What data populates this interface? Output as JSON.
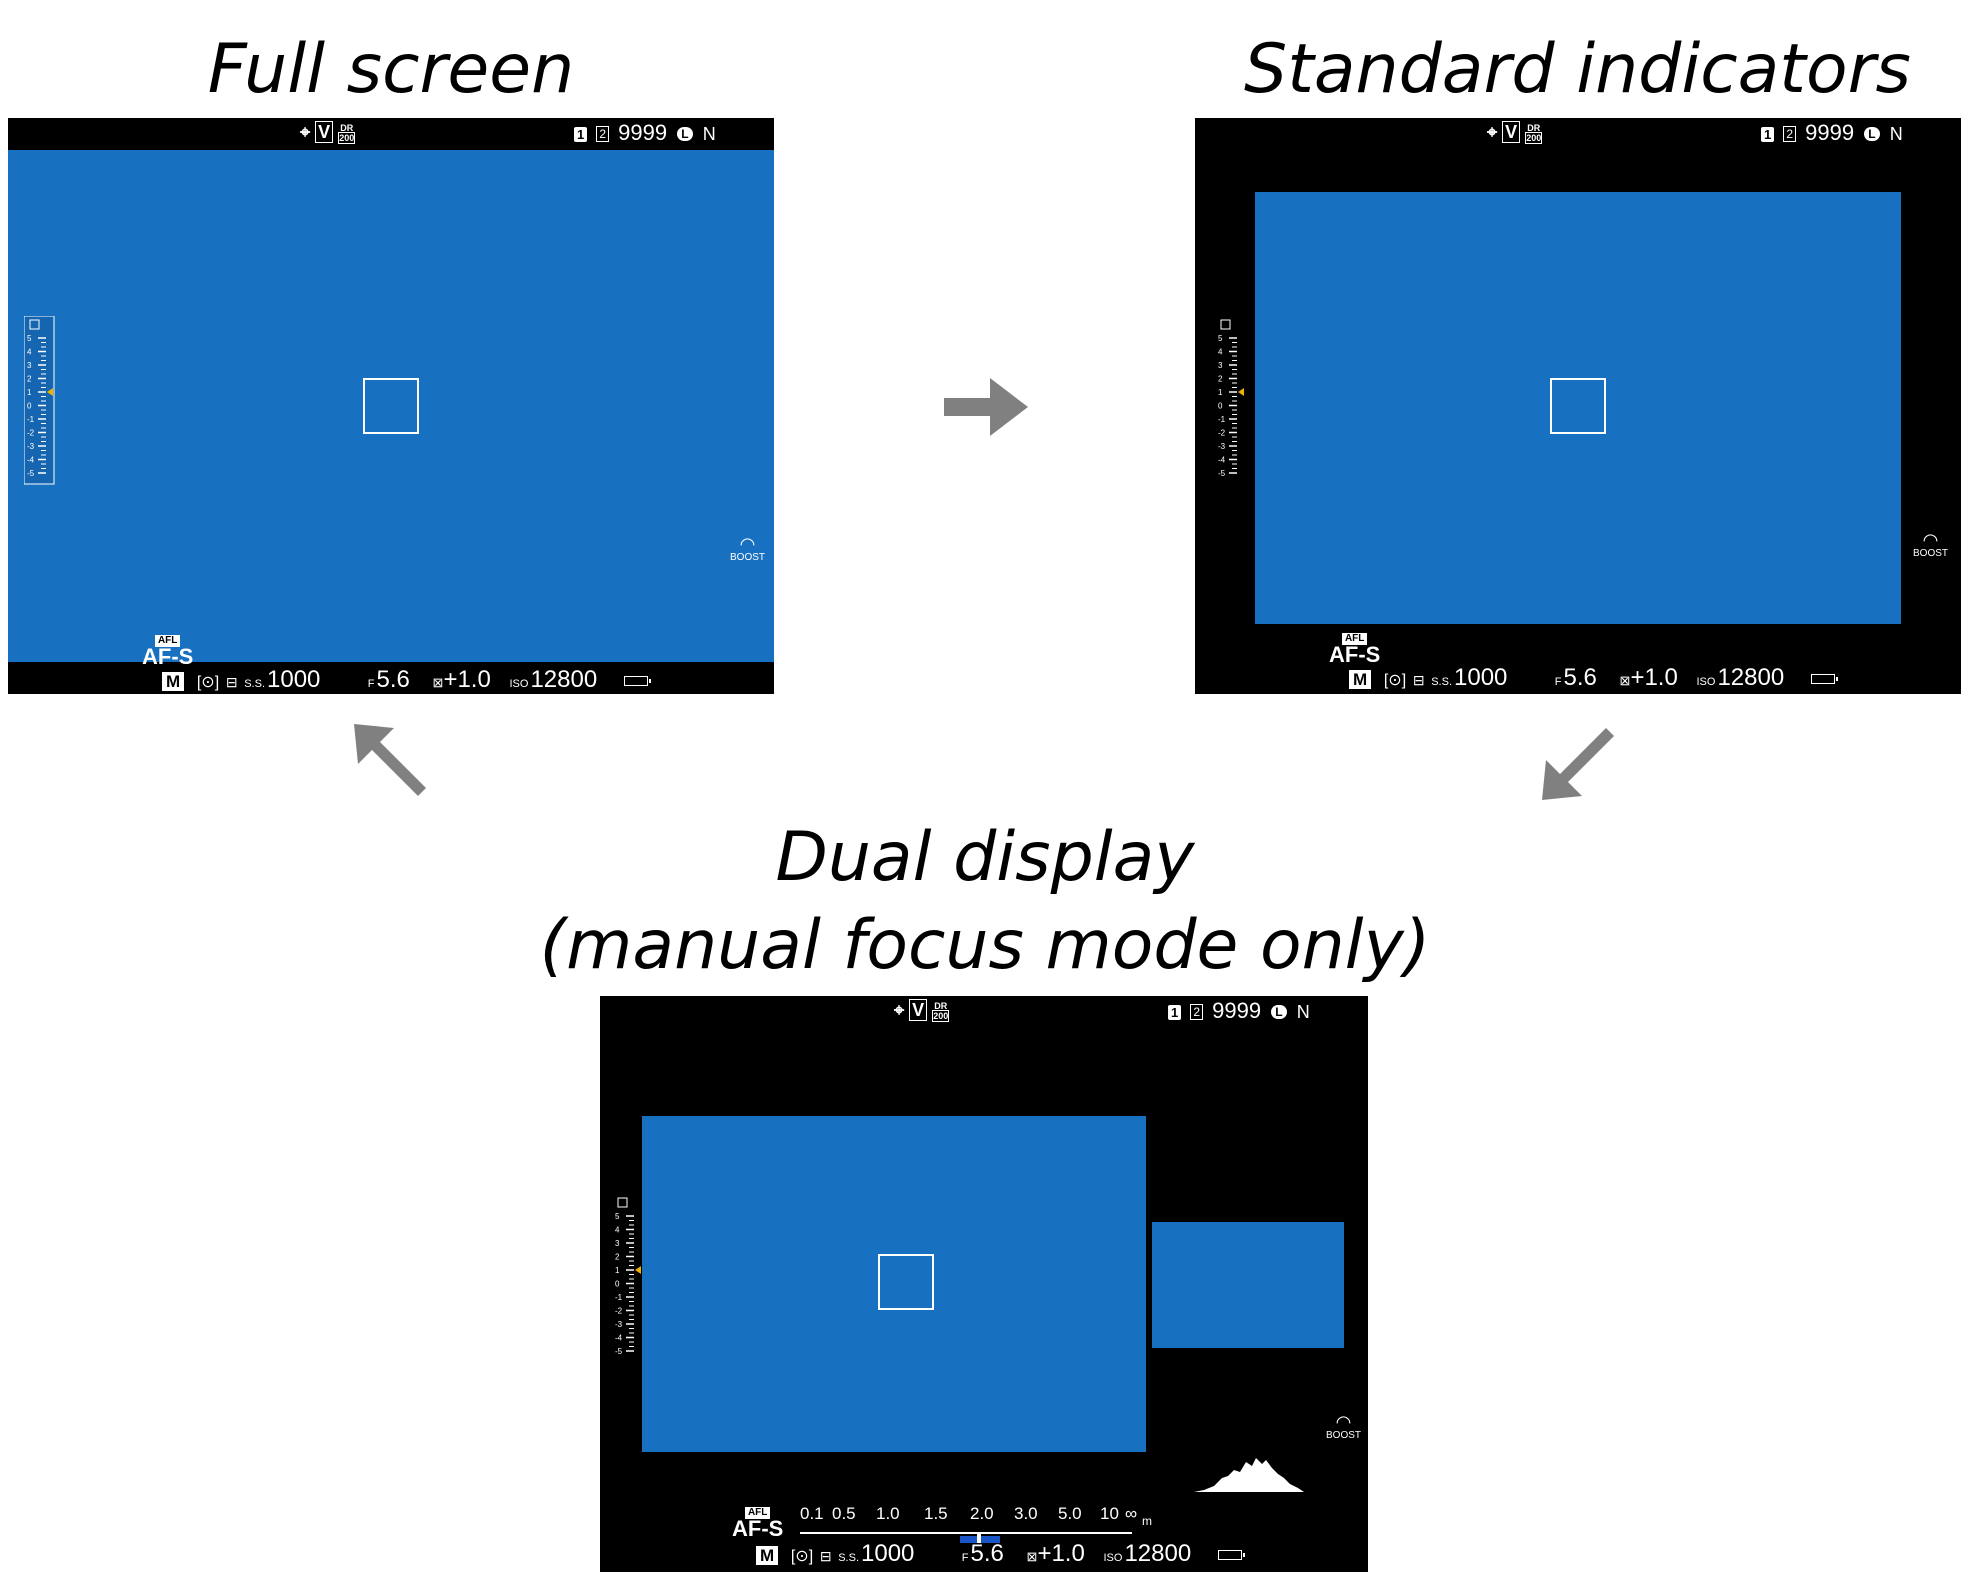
{
  "captions": {
    "full_screen": "Full screen",
    "standard_indicators": "Standard indicators",
    "dual_display_line1": "Dual display",
    "dual_display_line2": "(manual focus mode only)"
  },
  "indicators": {
    "dr_top": "DR",
    "dr_value": "200",
    "film_sim": "V",
    "card_1": "1",
    "card_2": "2",
    "frames": "9999",
    "size": "L",
    "quality": "N",
    "afl": "AFL",
    "af_mode": "AF-S",
    "boost": "BOOST",
    "mode": "M",
    "ss_label": "S.S.",
    "shutter": "1000",
    "f_label": "F",
    "aperture": "5.6",
    "exposure_comp": "+1.0",
    "iso_label": "ISO",
    "iso": "12800"
  },
  "exposure_scale": [
    "5",
    "4",
    "3",
    "2",
    "1",
    "0",
    "-1",
    "-2",
    "-3",
    "-4",
    "-5"
  ],
  "distance_scale": [
    "0.1",
    "0.5",
    "1.0",
    "1.5",
    "2.0",
    "3.0",
    "5.0",
    "10",
    "∞"
  ],
  "distance_unit": "m",
  "colors": {
    "live_view": "#1870c0",
    "background": "#000000",
    "indicator": "#ffffff",
    "arrow": "#808080",
    "exposure_marker": "#f0b000"
  }
}
